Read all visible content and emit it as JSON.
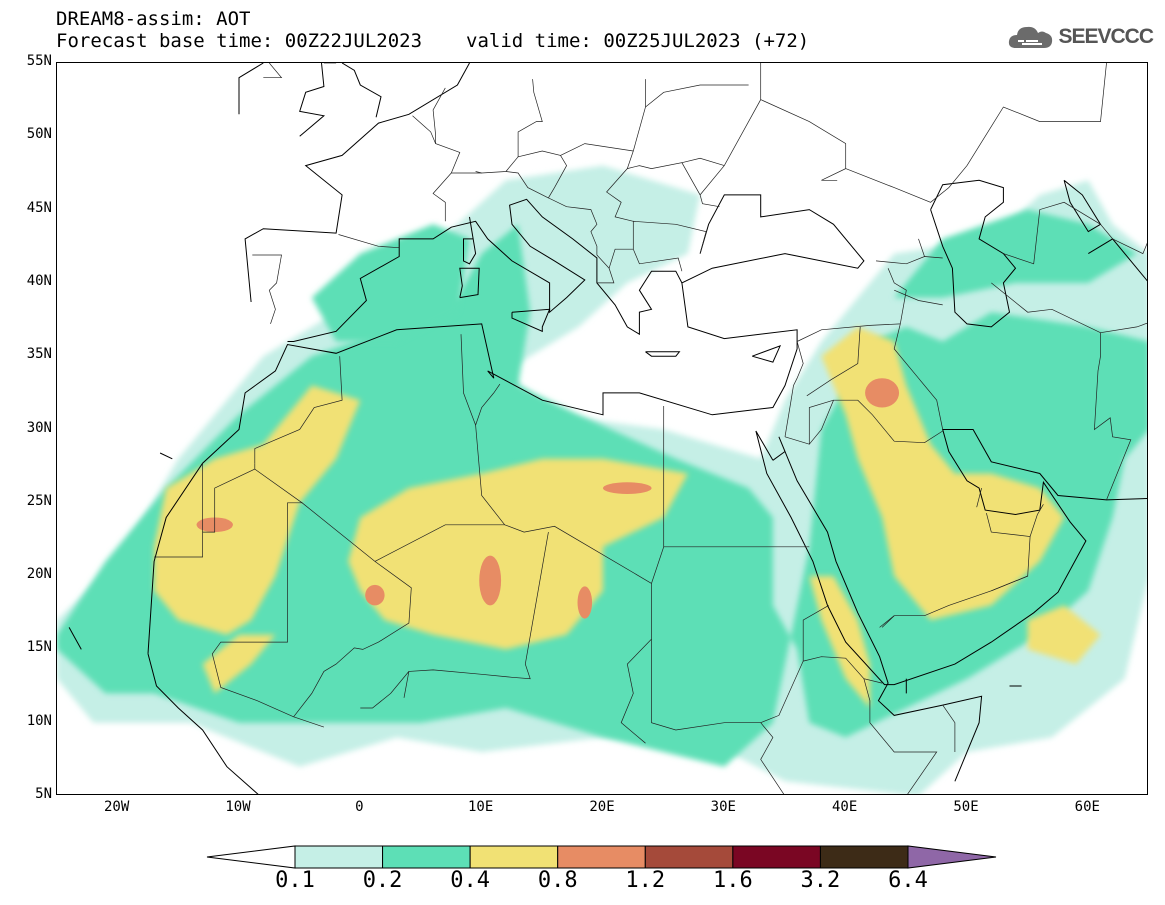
{
  "header": {
    "title_line1": "DREAM8-assim: AOT",
    "base_time": "Forecast base time: 00Z22JUL2023",
    "valid_time": "valid time: 00Z25JUL2023 (+72)"
  },
  "logo": {
    "text": "SEEVCCC",
    "icon": "cloud-icon"
  },
  "map": {
    "lon_range": [
      -25,
      65
    ],
    "lat_range": [
      5,
      55
    ],
    "lat_ticks": [
      {
        "value": 55,
        "label": "55N"
      },
      {
        "value": 50,
        "label": "50N"
      },
      {
        "value": 45,
        "label": "45N"
      },
      {
        "value": 40,
        "label": "40N"
      },
      {
        "value": 35,
        "label": "35N"
      },
      {
        "value": 30,
        "label": "30N"
      },
      {
        "value": 25,
        "label": "25N"
      },
      {
        "value": 20,
        "label": "20N"
      },
      {
        "value": 15,
        "label": "15N"
      },
      {
        "value": 10,
        "label": "10N"
      },
      {
        "value": 5,
        "label": "5N"
      }
    ],
    "lon_ticks": [
      {
        "value": -20,
        "label": "20W"
      },
      {
        "value": -10,
        "label": "10W"
      },
      {
        "value": 0,
        "label": "0"
      },
      {
        "value": 10,
        "label": "10E"
      },
      {
        "value": 20,
        "label": "20E"
      },
      {
        "value": 30,
        "label": "30E"
      },
      {
        "value": 40,
        "label": "40E"
      },
      {
        "value": 50,
        "label": "50E"
      },
      {
        "value": 60,
        "label": "60E"
      }
    ]
  },
  "colors": {
    "c01": "#c5efe6",
    "c02": "#5ddfb6",
    "c04": "#f1e174",
    "c08": "#e78c64",
    "c12": "#a54a3a",
    "c16": "#7a0623",
    "c32": "#3d2b17",
    "c64": "#8f67a7"
  },
  "colorbar": {
    "labels": [
      "0.1",
      "0.2",
      "0.4",
      "0.8",
      "1.2",
      "1.6",
      "3.2",
      "6.4"
    ],
    "bins": [
      "#c5efe6",
      "#5ddfb6",
      "#f1e174",
      "#e78c64",
      "#a54a3a",
      "#7a0623",
      "#3d2b17"
    ],
    "over_color": "#8f67a7",
    "under_color": "#ffffff"
  }
}
